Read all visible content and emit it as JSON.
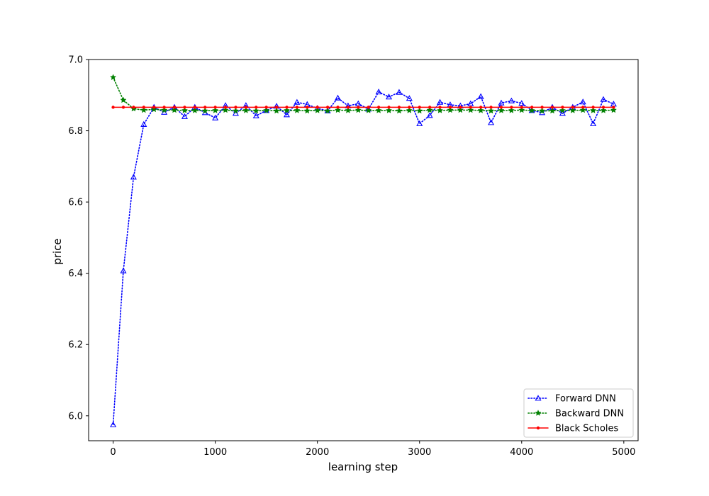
{
  "chart_data": {
    "type": "line",
    "title": "",
    "xlabel": "learning step",
    "ylabel": "price",
    "xlim": [
      -240,
      5140
    ],
    "ylim": [
      5.93,
      7.0
    ],
    "xticks": [
      0,
      1000,
      2000,
      3000,
      4000,
      5000
    ],
    "xtick_labels": [
      "0",
      "1000",
      "2000",
      "3000",
      "4000",
      "5000"
    ],
    "yticks": [
      6.0,
      6.2,
      6.4,
      6.6,
      6.8,
      7.0
    ],
    "ytick_labels": [
      "6.0",
      "6.2",
      "6.4",
      "6.6",
      "6.8",
      "7.0"
    ],
    "grid": false,
    "legend_position": "bottom-right",
    "x": [
      0,
      100,
      200,
      300,
      400,
      500,
      600,
      700,
      800,
      900,
      1000,
      1100,
      1200,
      1300,
      1400,
      1500,
      1600,
      1700,
      1800,
      1900,
      2000,
      2100,
      2200,
      2300,
      2400,
      2500,
      2600,
      2700,
      2800,
      2900,
      3000,
      3100,
      3200,
      3300,
      3400,
      3500,
      3600,
      3700,
      3800,
      3900,
      4000,
      4100,
      4200,
      4300,
      4400,
      4500,
      4600,
      4700,
      4800,
      4900
    ],
    "series": [
      {
        "name": "Forward DNN",
        "color": "#0000ff",
        "line_style": "dotted",
        "marker": "triangle-open",
        "values": [
          5.975,
          6.407,
          6.67,
          6.818,
          6.866,
          6.852,
          6.866,
          6.84,
          6.866,
          6.851,
          6.836,
          6.871,
          6.849,
          6.871,
          6.842,
          6.857,
          6.869,
          6.845,
          6.88,
          6.874,
          6.863,
          6.856,
          6.892,
          6.87,
          6.876,
          6.861,
          6.909,
          6.895,
          6.908,
          6.891,
          6.82,
          6.843,
          6.88,
          6.873,
          6.87,
          6.876,
          6.896,
          6.823,
          6.878,
          6.884,
          6.877,
          6.857,
          6.851,
          6.866,
          6.849,
          6.866,
          6.881,
          6.82,
          6.888,
          6.875
        ]
      },
      {
        "name": "Backward DNN",
        "color": "#008000",
        "line_style": "dotted",
        "marker": "star",
        "values": [
          6.95,
          6.886,
          6.862,
          6.858,
          6.86,
          6.858,
          6.858,
          6.857,
          6.857,
          6.856,
          6.857,
          6.858,
          6.856,
          6.857,
          6.856,
          6.857,
          6.856,
          6.857,
          6.857,
          6.856,
          6.857,
          6.856,
          6.858,
          6.857,
          6.858,
          6.857,
          6.857,
          6.857,
          6.856,
          6.857,
          6.856,
          6.858,
          6.857,
          6.858,
          6.858,
          6.858,
          6.857,
          6.856,
          6.857,
          6.857,
          6.858,
          6.857,
          6.856,
          6.856,
          6.857,
          6.857,
          6.858,
          6.857,
          6.857,
          6.858
        ]
      },
      {
        "name": "Black Scholes",
        "color": "#ff0000",
        "line_style": "solid",
        "marker": "dot",
        "values": [
          6.866,
          6.866,
          6.866,
          6.866,
          6.866,
          6.866,
          6.866,
          6.866,
          6.866,
          6.866,
          6.866,
          6.866,
          6.866,
          6.866,
          6.866,
          6.866,
          6.866,
          6.866,
          6.866,
          6.866,
          6.866,
          6.866,
          6.866,
          6.866,
          6.866,
          6.866,
          6.866,
          6.866,
          6.866,
          6.866,
          6.866,
          6.866,
          6.866,
          6.866,
          6.866,
          6.866,
          6.866,
          6.866,
          6.866,
          6.866,
          6.866,
          6.866,
          6.866,
          6.866,
          6.866,
          6.866,
          6.866,
          6.866,
          6.866,
          6.866
        ]
      }
    ]
  }
}
